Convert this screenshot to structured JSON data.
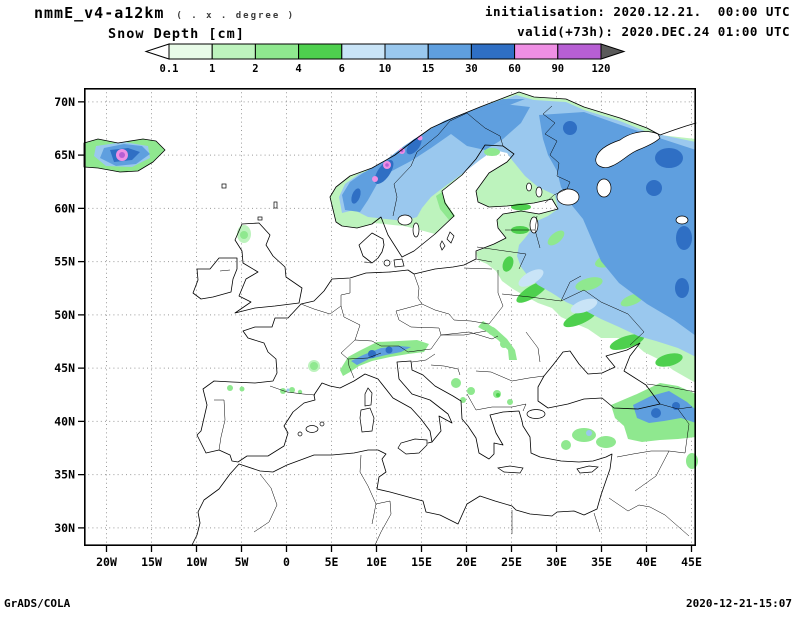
{
  "header": {
    "model_title": "nmmE_v4-a12km",
    "model_subtitle": "( . x . degree )",
    "field_title": "Snow Depth [cm]",
    "init_line": "initialisation: 2020.12.21.  00:00 UTC",
    "valid_line": "valid(+73h): 2020.DEC.24 01:00 UTC"
  },
  "footer": {
    "credit": "GrADS/COLA",
    "timestamp": "2020-12-21-15:07"
  },
  "chart_data": {
    "type": "heatmap",
    "title": "Snow Depth [cm]",
    "variable": "Snow Depth",
    "units": "cm",
    "model": "nmmE_v4-a12km",
    "initialisation": "2020.12.21. 00:00 UTC",
    "valid": "2020.DEC.24 01:00 UTC (+73h)",
    "projection": "latlon",
    "lon_range_deg": [
      -22.5,
      45.5
    ],
    "lat_range_deg": [
      28.3,
      71.3
    ],
    "x_tick_labels": [
      "20W",
      "15W",
      "10W",
      "5W",
      "0",
      "5E",
      "10E",
      "15E",
      "20E",
      "25E",
      "30E",
      "35E",
      "40E",
      "45E"
    ],
    "x_tick_lons": [
      -20,
      -15,
      -10,
      -5,
      0,
      5,
      10,
      15,
      20,
      25,
      30,
      35,
      40,
      45
    ],
    "y_tick_labels": [
      "70N",
      "65N",
      "60N",
      "55N",
      "50N",
      "45N",
      "40N",
      "35N",
      "30N"
    ],
    "y_tick_lats": [
      70,
      65,
      60,
      55,
      50,
      45,
      40,
      35,
      30
    ],
    "grid": "dotted",
    "colorbar": {
      "levels": [
        0.1,
        1,
        2,
        4,
        6,
        10,
        15,
        30,
        60,
        90,
        120
      ],
      "label_values": [
        "0.1",
        "1",
        "2",
        "4",
        "6",
        "10",
        "15",
        "30",
        "60",
        "90",
        "120"
      ],
      "colors": [
        "#ffffff",
        "#e8fbe8",
        "#bdf3bd",
        "#8fe88f",
        "#4ed04e",
        "#c9e4f7",
        "#9ac8ee",
        "#5f9fdf",
        "#2f6fc4",
        "#ef8fe4",
        "#b75fd4",
        "#5a5a5a"
      ]
    },
    "features": [
      {
        "region": "Norwegian mountains / Scandinavian spine",
        "snow_depth_cm": "30-120, local maxima 60-120 (magenta/purple spots)"
      },
      {
        "region": "Sweden and Finland",
        "snow_depth_cm": "6-30, green fringe along Gulf of Bothnia coast"
      },
      {
        "region": "Kola Peninsula, Karelia, NW Russia",
        "snow_depth_cm": "15-60"
      },
      {
        "region": "Western Russia toward 45E",
        "snow_depth_cm": "6-30 with green streaks"
      },
      {
        "region": "Baltic states and Belarus",
        "snow_depth_cm": "0.1-6 (green fringe of main snow field)"
      },
      {
        "region": "Iceland",
        "snow_depth_cm": "2-120, purple core in center"
      },
      {
        "region": "Alps",
        "snow_depth_cm": "1-60, blue core along main ridge"
      },
      {
        "region": "Carpathians",
        "snow_depth_cm": "0.1-4"
      },
      {
        "region": "Dinaric Alps / Balkan mountains",
        "snow_depth_cm": "0.1-4 (scattered patches)"
      },
      {
        "region": "Eastern Turkey, Armenia, Caucasus",
        "snow_depth_cm": "1-60"
      },
      {
        "region": "Central Anatolia",
        "snow_depth_cm": "0.1-6 (patches)"
      },
      {
        "region": "Scottish Highlands, Pyrenees, NW Spain, Massif Central",
        "snow_depth_cm": "0.1-2 (small spots)"
      },
      {
        "region": "Western/Southern Europe lowlands, North Africa",
        "snow_depth_cm": "0 (no snow)"
      }
    ]
  }
}
